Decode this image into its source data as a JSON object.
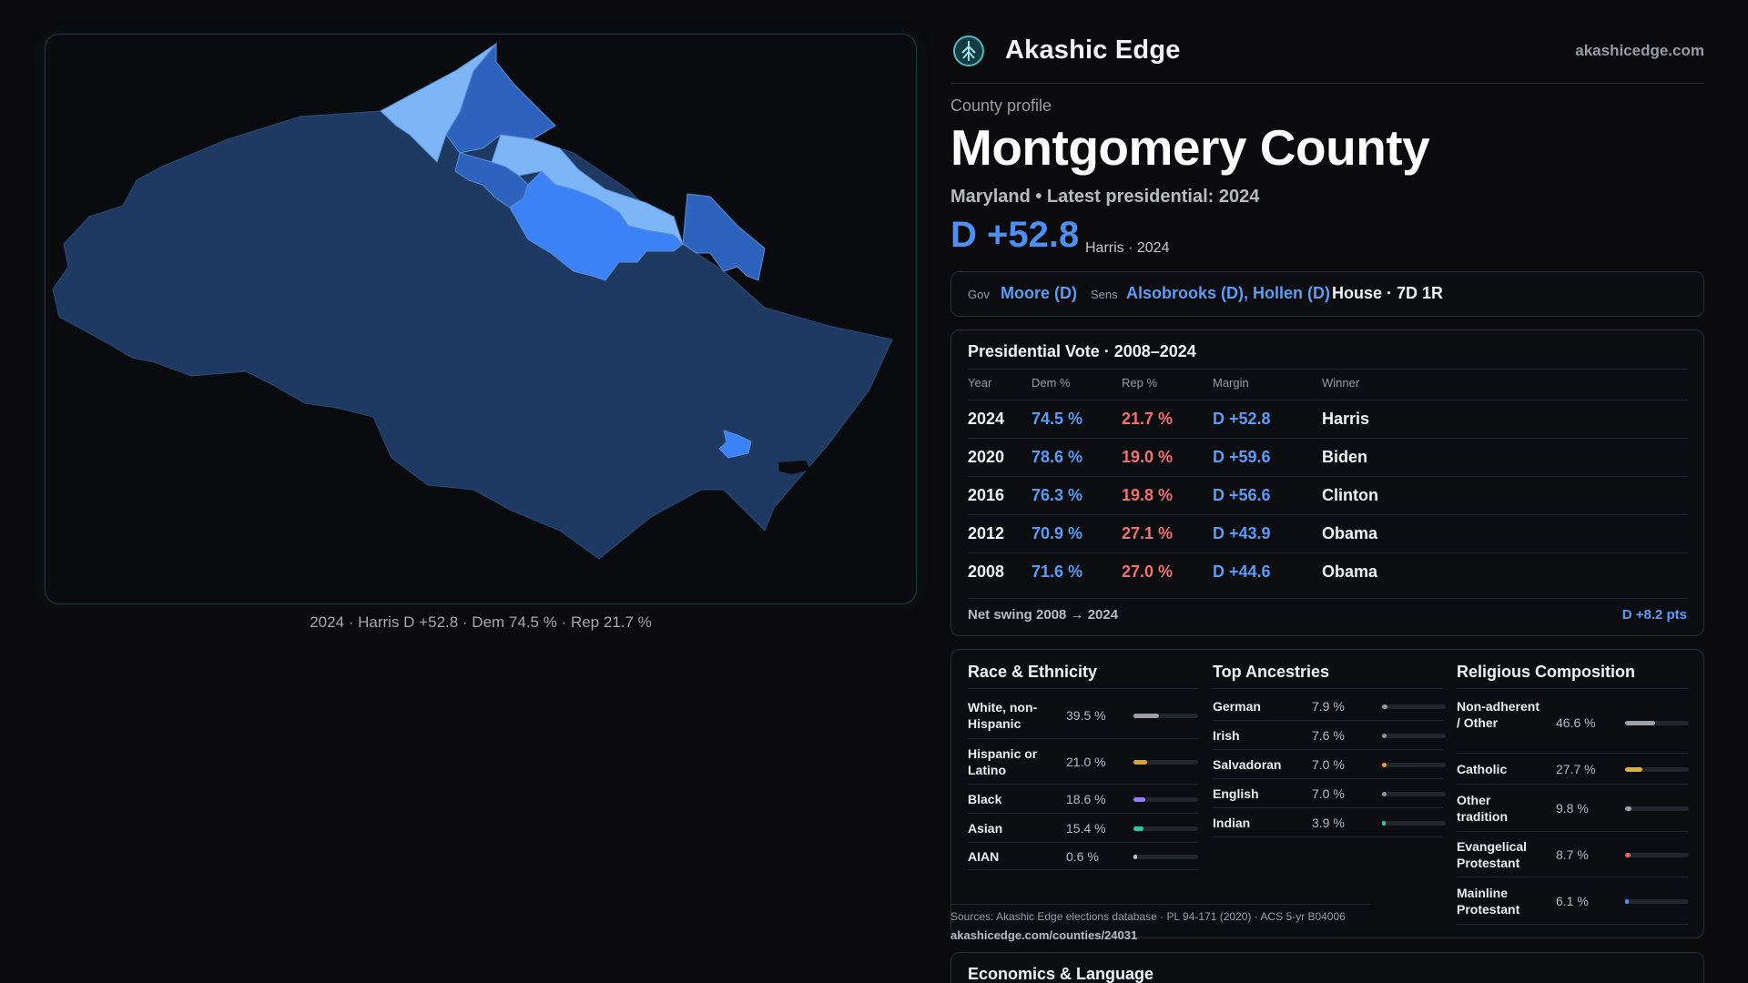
{
  "map": {
    "caption": "2024 · Harris D +52.8 · Dem 74.5 % · Rep 21.7 %",
    "colors": {
      "strong_d": "#1e3a63",
      "lean_d": "#2e62bf",
      "bright_d": "#3b82f6",
      "light": "#7db6f7"
    }
  },
  "brand": {
    "name": "Akashic Edge",
    "site": "akashicedge.com",
    "logo_icon": "globe-tree-icon"
  },
  "profile": {
    "kicker": "County profile",
    "title": "Montgomery County",
    "subtitle": "Maryland • Latest presidential: 2024",
    "margin": "D +52.8",
    "margin_note": "Harris · 2024"
  },
  "officials": {
    "gov_label": "Gov",
    "gov": "Moore (D)",
    "sens_label": "Sens",
    "sens": "Alsobrooks (D), Hollen (D)",
    "house": "House · 7D 1R"
  },
  "votes": {
    "title": "Presidential Vote · 2008–2024",
    "headers": {
      "year": "Year",
      "dem": "Dem %",
      "rep": "Rep %",
      "margin": "Margin",
      "winner": "Winner"
    },
    "rows": [
      {
        "year": "2024",
        "dem": "74.5 %",
        "rep": "21.7 %",
        "margin": "D +52.8",
        "winner": "Harris"
      },
      {
        "year": "2020",
        "dem": "78.6 %",
        "rep": "19.0 %",
        "margin": "D +59.6",
        "winner": "Biden"
      },
      {
        "year": "2016",
        "dem": "76.3 %",
        "rep": "19.8 %",
        "margin": "D +56.6",
        "winner": "Clinton"
      },
      {
        "year": "2012",
        "dem": "70.9 %",
        "rep": "27.1 %",
        "margin": "D +43.9",
        "winner": "Obama"
      },
      {
        "year": "2008",
        "dem": "71.6 %",
        "rep": "27.0 %",
        "margin": "D +44.6",
        "winner": "Obama"
      }
    ],
    "swing_label": "Net swing 2008 → 2024",
    "swing_value": "D +8.2 pts"
  },
  "race": {
    "title": "Race & Ethnicity",
    "items": [
      {
        "label": "White, non-Hispanic",
        "pct": "39.5 %",
        "value": 39.5,
        "color": "#9aa0a8"
      },
      {
        "label": "Hispanic or Latino",
        "pct": "21.0 %",
        "value": 21.0,
        "color": "#e0a030"
      },
      {
        "label": "Black",
        "pct": "18.6 %",
        "value": 18.6,
        "color": "#9b7cf0"
      },
      {
        "label": "Asian",
        "pct": "15.4 %",
        "value": 15.4,
        "color": "#2ec99a"
      },
      {
        "label": "AIAN",
        "pct": "0.6 %",
        "value": 0.6,
        "color": "#c0c0c0"
      }
    ]
  },
  "ancestries": {
    "title": "Top Ancestries",
    "items": [
      {
        "label": "German",
        "pct": "7.9 %",
        "value": 7.9,
        "color": "#8e96a0"
      },
      {
        "label": "Irish",
        "pct": "7.6 %",
        "value": 7.6,
        "color": "#8e96a0"
      },
      {
        "label": "Salvadoran",
        "pct": "7.0 %",
        "value": 7.0,
        "color": "#e0a030"
      },
      {
        "label": "English",
        "pct": "7.0 %",
        "value": 7.0,
        "color": "#8e96a0"
      },
      {
        "label": "Indian",
        "pct": "3.9 %",
        "value": 3.9,
        "color": "#2ec99a"
      }
    ]
  },
  "religion": {
    "title": "Religious Composition",
    "items": [
      {
        "label": "Non-adherent / Other",
        "pct": "46.6 %",
        "value": 46.6,
        "color": "#9aa0a8"
      },
      {
        "label": "Catholic",
        "pct": "27.7 %",
        "value": 27.7,
        "color": "#e0b030"
      },
      {
        "label": "Other tradition",
        "pct": "9.8 %",
        "value": 9.8,
        "color": "#9aa0a8"
      },
      {
        "label": "Evangelical Protestant",
        "pct": "8.7 %",
        "value": 8.7,
        "color": "#f06060"
      },
      {
        "label": "Mainline Protestant",
        "pct": "6.1 %",
        "value": 6.1,
        "color": "#4e8ff5"
      }
    ]
  },
  "sources": {
    "text": "Sources: Akashic Edge elections database · PL 94-171 (2020) · ACS 5-yr B04006",
    "url": "akashicedge.com/counties/24031"
  },
  "econ": {
    "title": "Economics & Language"
  }
}
